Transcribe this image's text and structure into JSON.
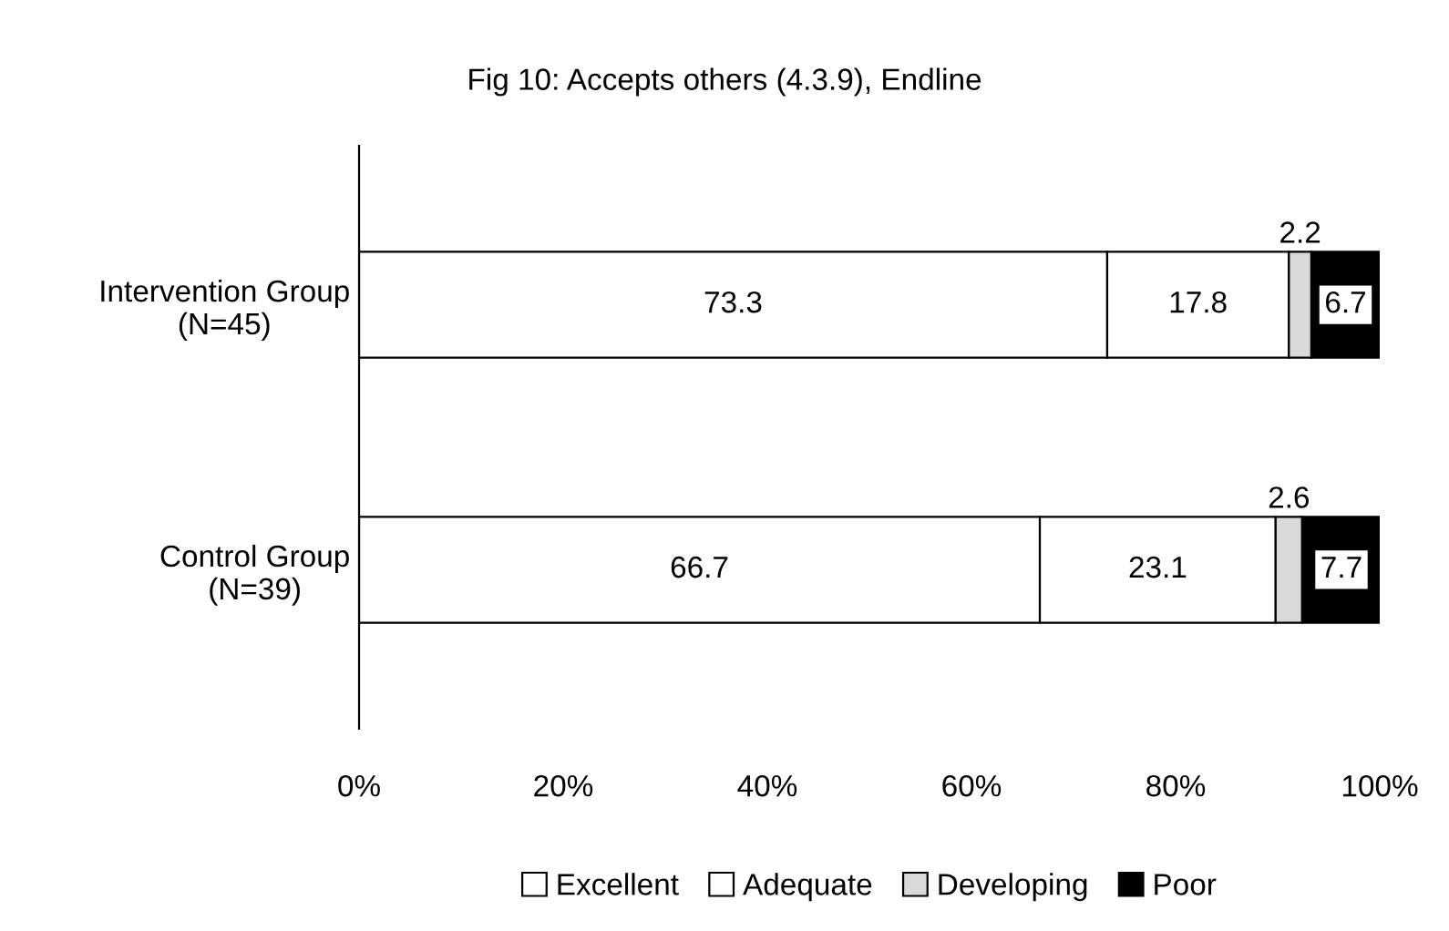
{
  "chart_data": {
    "type": "bar",
    "orientation": "horizontal",
    "stacked": true,
    "title": "Fig 10: Accepts others (4.3.9), Endline",
    "categories": [
      "Intervention Group\n(N=45)",
      "Control Group\n(N=39)"
    ],
    "series": [
      {
        "name": "Excellent",
        "color": "#ffffff",
        "values": [
          73.3,
          66.7
        ]
      },
      {
        "name": "Adequate",
        "color": "#ffffff",
        "values": [
          17.8,
          23.1
        ]
      },
      {
        "name": "Developing",
        "color": "#d9d9d9",
        "values": [
          2.2,
          2.6
        ]
      },
      {
        "name": "Poor",
        "color": "#000000",
        "values": [
          6.7,
          7.7
        ]
      }
    ],
    "xlim": [
      0,
      100
    ],
    "xticks": [
      {
        "value": 0,
        "label": "0%"
      },
      {
        "value": 20,
        "label": "20%"
      },
      {
        "value": 40,
        "label": "40%"
      },
      {
        "value": 60,
        "label": "60%"
      },
      {
        "value": 80,
        "label": "80%"
      },
      {
        "value": 100,
        "label": "100%"
      }
    ],
    "data_labels": true,
    "legend": "bottom",
    "grid": false
  }
}
